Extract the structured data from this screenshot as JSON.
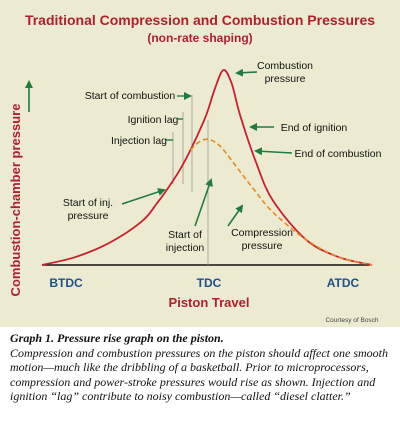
{
  "chart_data": {
    "type": "line",
    "title": "Traditional Compression and Combustion Pressures",
    "subtitle": "(non-rate shaping)",
    "xlabel": "Piston Travel",
    "ylabel": "Combustion-chamber pressure",
    "x_ticks": [
      "BTDC",
      "TDC",
      "ATDC"
    ],
    "series": [
      {
        "name": "Combustion pressure",
        "style": "solid",
        "color": "#c8202f",
        "x": [
          -1.0,
          -0.8,
          -0.6,
          -0.4,
          -0.3,
          -0.2,
          -0.15,
          -0.1,
          -0.05,
          0.0,
          0.05,
          0.1,
          0.15,
          0.2,
          0.3,
          0.4,
          0.6,
          0.8,
          1.0
        ],
        "y": [
          0.0,
          0.04,
          0.11,
          0.22,
          0.32,
          0.44,
          0.51,
          0.59,
          0.68,
          0.78,
          0.91,
          1.0,
          0.93,
          0.77,
          0.52,
          0.33,
          0.13,
          0.04,
          0.0
        ]
      },
      {
        "name": "Compression pressure",
        "style": "dashed",
        "color": "#e8891f",
        "x": [
          -0.1,
          -0.05,
          0.0,
          0.05,
          0.1,
          0.2,
          0.3,
          0.4,
          0.6,
          0.8,
          1.0
        ],
        "y": [
          0.59,
          0.63,
          0.645,
          0.63,
          0.59,
          0.48,
          0.37,
          0.27,
          0.13,
          0.04,
          0.0
        ]
      }
    ],
    "annotations": {
      "combustion_pressure": [
        "Combustion",
        "pressure"
      ],
      "start_of_combustion": "Start of combustion",
      "ignition_lag": "Ignition lag",
      "injection_lag": "Injection lag",
      "end_of_ignition": "End of ignition",
      "end_of_combustion": "End of combustion",
      "start_of_inj_pressure": [
        "Start of inj.",
        "pressure"
      ],
      "start_of_injection": [
        "Start of",
        "injection"
      ],
      "compression_pressure": [
        "Compression",
        "pressure"
      ]
    },
    "credit": "Courtesy of Bosch",
    "colors": {
      "background": "#ecebd2",
      "accent": "#b11e2d",
      "tick": "#1d4f8a",
      "arrow": "#1e7d3c"
    }
  },
  "caption": {
    "title": "Graph 1. Pressure rise graph on the piston.",
    "body": "Compression and combustion pressures on the piston should affect one smooth motion—much like the dribbling of a basketball. Prior to microprocessors, compression and power-stroke pressures would rise as shown. Injection and ignition “lag” contribute to noisy combustion—called “diesel clatter.”"
  }
}
